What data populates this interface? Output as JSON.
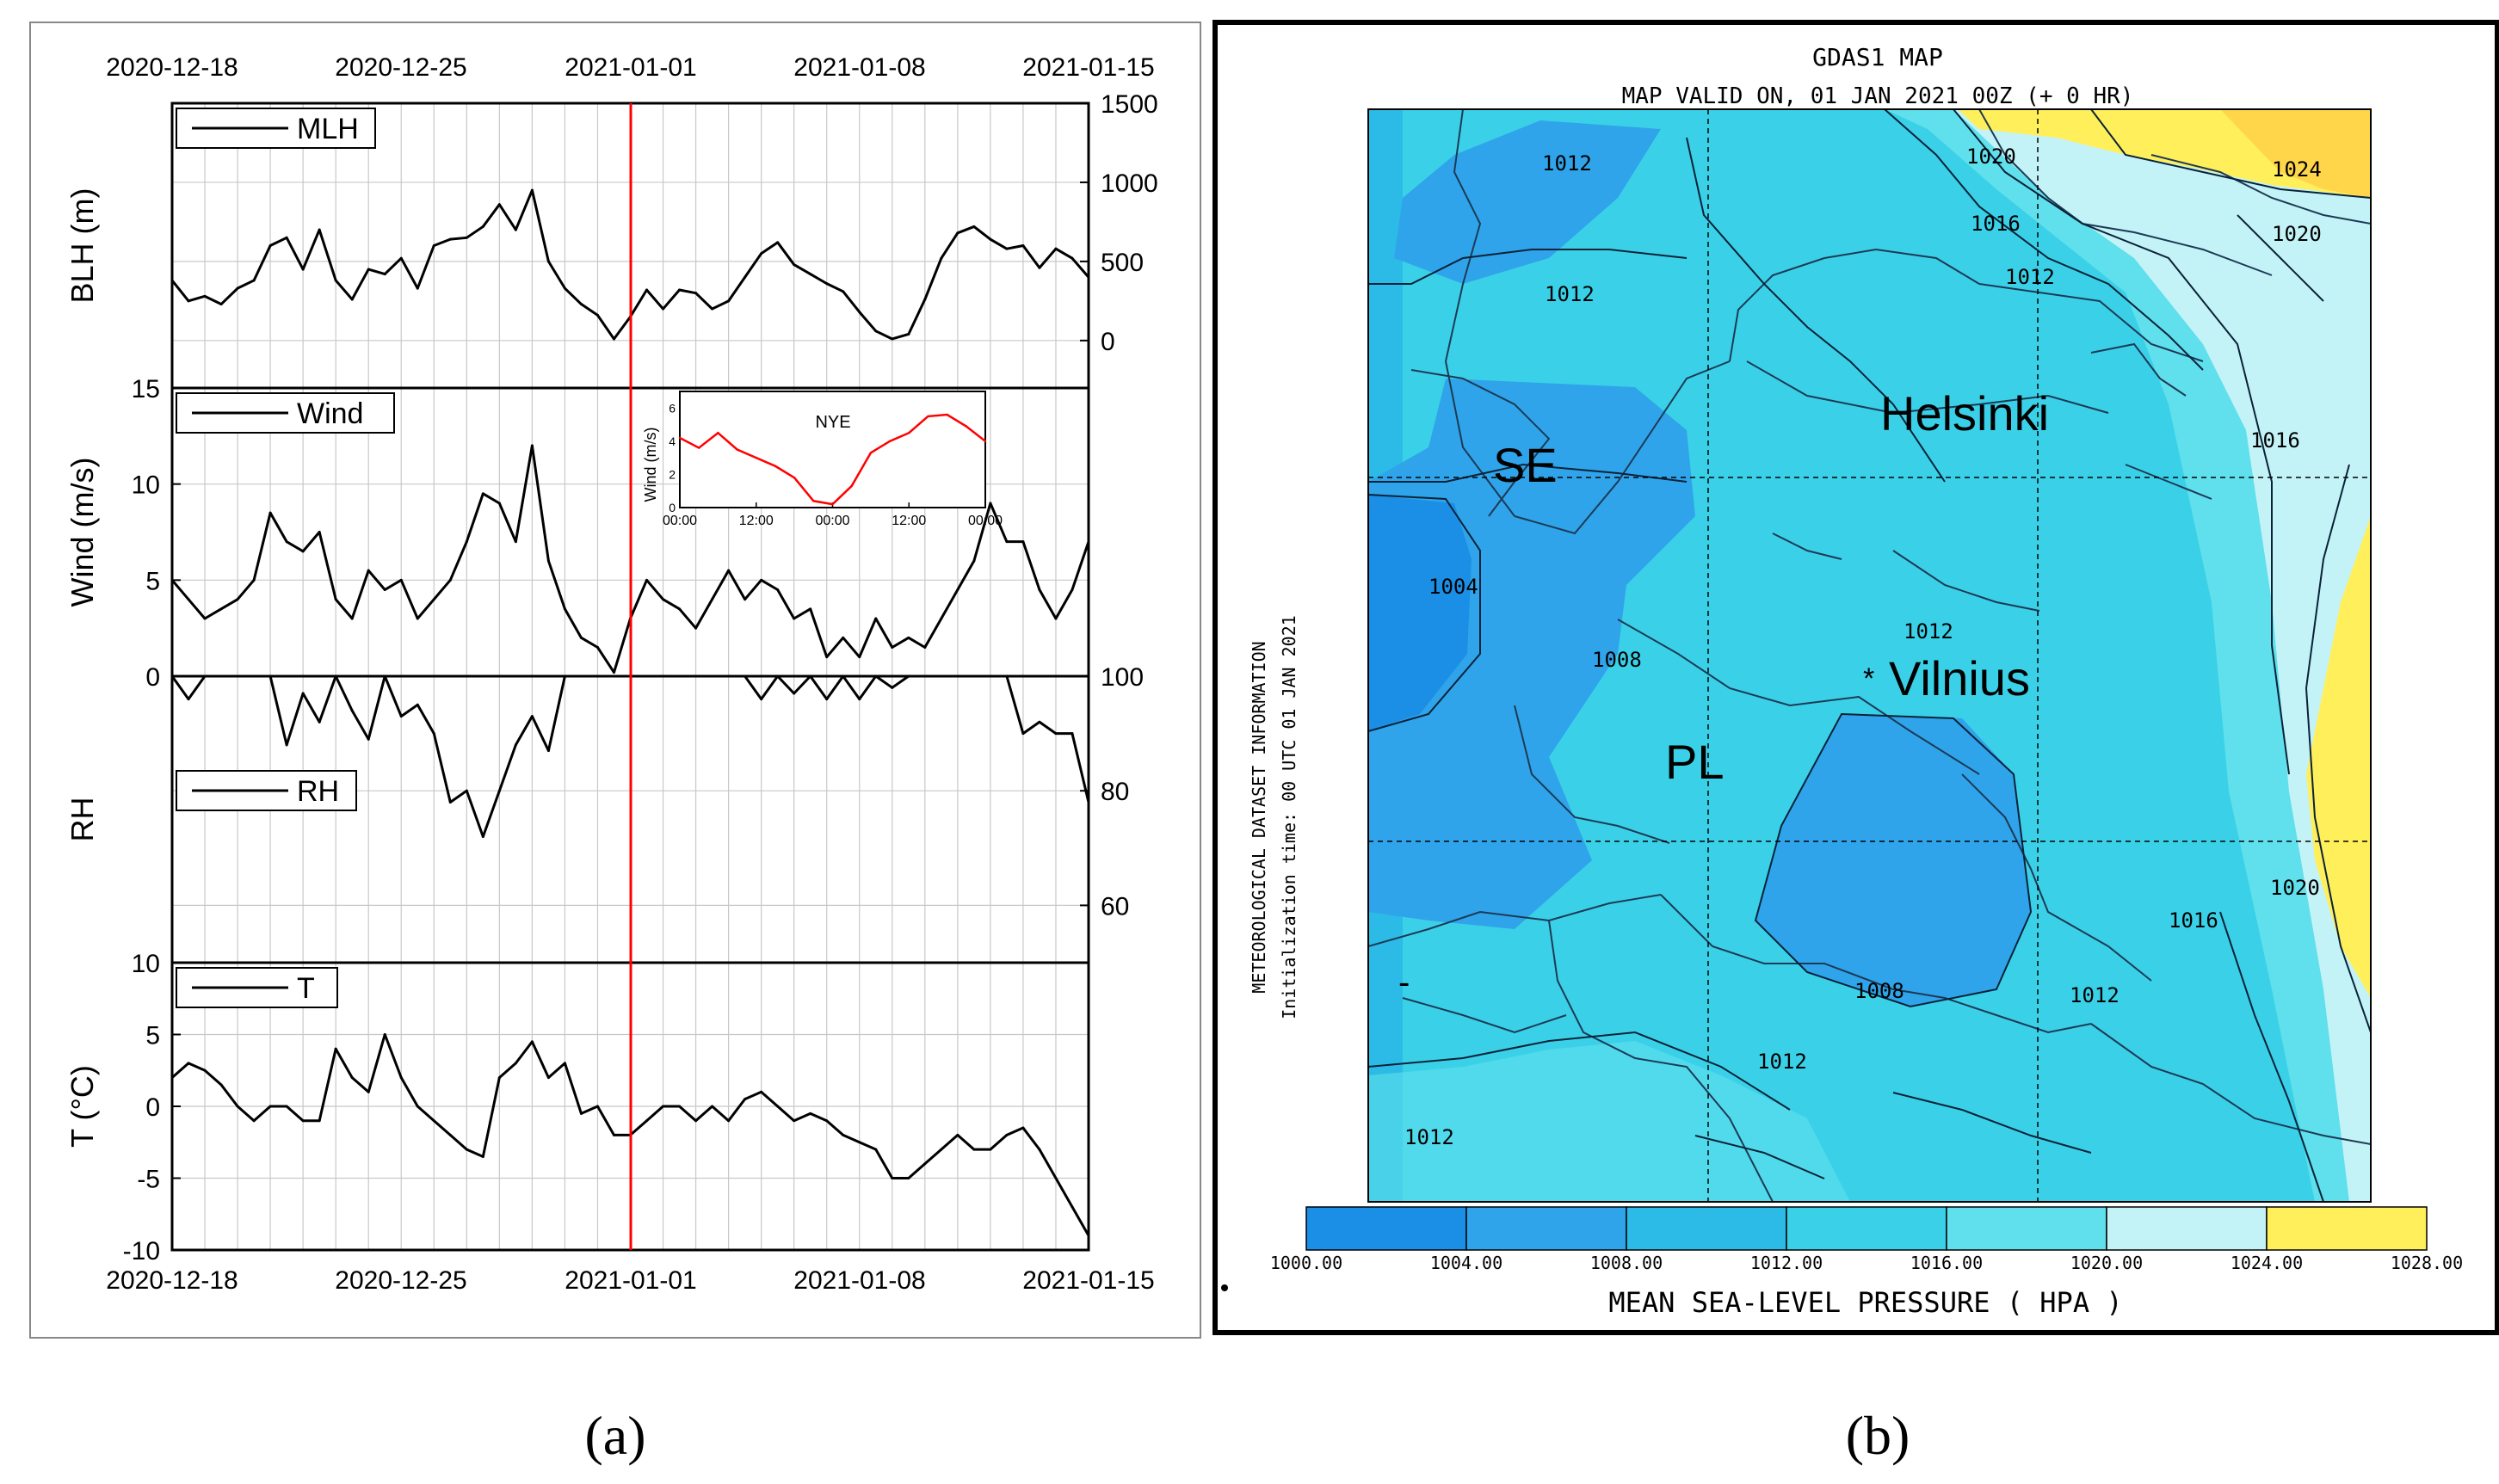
{
  "panel_a": {
    "caption": "(a)",
    "top_dates": [
      "2020-12-18",
      "2020-12-25",
      "2021-01-01",
      "2021-01-08",
      "2021-01-15"
    ],
    "bottom_dates": [
      "2020-12-18",
      "2020-12-25",
      "2021-01-01",
      "2021-01-08",
      "2021-01-15"
    ],
    "event_color": "#ff0000",
    "line_color": "#000000"
  },
  "panel_b": {
    "caption": "(b)",
    "title": "GDAS1 MAP",
    "subtitle": "MAP VALID ON, 01 JAN 2021 00Z (+  0 HR)",
    "side_label_1": "METEOROLOGICAL DATASET INFORMATION",
    "side_label_2": "Initialization time: 00 UTC 01 JAN 2021",
    "colorbar_title": "MEAN SEA-LEVEL PRESSURE ( HPA   )",
    "colorbar_ticks": [
      "1000.00",
      "1004.00",
      "1008.00",
      "1012.00",
      "1016.00",
      "1020.00",
      "1024.00",
      "1028.00"
    ],
    "colorbar_colors": [
      "#1b8fe6",
      "#2fa4ea",
      "#2bbbe6",
      "#3ad1e8",
      "#5fe0ec",
      "#c4f3f7",
      "#ffef5a",
      "#ffc928"
    ],
    "place_labels": [
      "SE",
      "Helsinki",
      "PL",
      "Vilnius"
    ],
    "vilnius_marker": "*",
    "stray_mark": "-",
    "isobar_labels": [
      "1012",
      "1020",
      "1024",
      "1016",
      "1020",
      "1012",
      "1012",
      "1016",
      "1004",
      "1012",
      "1008",
      "1020",
      "1016",
      "1008",
      "1012",
      "1012",
      "1012"
    ]
  },
  "chart_data": [
    {
      "type": "line",
      "title": "",
      "xlabel": "",
      "ylabel": "BLH (m)",
      "legend": "MLH",
      "legend_position": "top-left",
      "ylim": [
        -300,
        1500
      ],
      "yticks": [
        "1500",
        "1000",
        "500",
        "0"
      ],
      "x_start": "2020-12-18",
      "x_end": "2021-01-15",
      "x_days": [
        0,
        0.5,
        1,
        1.5,
        2,
        2.5,
        3,
        3.5,
        4,
        4.5,
        5,
        5.5,
        6,
        6.5,
        7,
        7.5,
        8,
        8.5,
        9,
        9.5,
        10,
        10.5,
        11,
        11.5,
        12,
        12.5,
        13,
        13.5,
        14,
        14.5,
        15,
        15.5,
        16,
        16.5,
        17,
        17.5,
        18,
        18.5,
        19,
        19.5,
        20,
        20.5,
        21,
        21.5,
        22,
        22.5,
        23,
        23.5,
        24,
        24.5,
        25,
        25.5,
        26,
        26.5,
        27,
        27.5,
        28
      ],
      "values": [
        380,
        250,
        280,
        230,
        330,
        380,
        600,
        650,
        450,
        700,
        380,
        260,
        450,
        420,
        520,
        330,
        600,
        640,
        650,
        720,
        860,
        700,
        950,
        500,
        330,
        230,
        160,
        10,
        150,
        320,
        200,
        320,
        300,
        200,
        250,
        400,
        550,
        620,
        480,
        420,
        360,
        310,
        180,
        60,
        10,
        40,
        260,
        520,
        680,
        720,
        640,
        580,
        600,
        460,
        580,
        520,
        400
      ],
      "event_date": "2021-01-01"
    },
    {
      "type": "line",
      "title": "",
      "xlabel": "",
      "ylabel": "Wind (m/s)",
      "legend": "Wind",
      "legend_position": "top-left",
      "ylim": [
        0,
        15
      ],
      "yticks": [
        "15",
        "10",
        "5",
        "0"
      ],
      "x_start": "2020-12-18",
      "x_end": "2021-01-15",
      "x_days": [
        0,
        0.5,
        1,
        1.5,
        2,
        2.5,
        3,
        3.5,
        4,
        4.5,
        5,
        5.5,
        6,
        6.5,
        7,
        7.5,
        8,
        8.5,
        9,
        9.5,
        10,
        10.5,
        11,
        11.5,
        12,
        12.5,
        13,
        13.5,
        14,
        14.5,
        15,
        15.5,
        16,
        16.5,
        17,
        17.5,
        18,
        18.5,
        19,
        19.5,
        20,
        20.5,
        21,
        21.5,
        22,
        22.5,
        23,
        23.5,
        24,
        24.5,
        25,
        25.5,
        26,
        26.5,
        27,
        27.5,
        28
      ],
      "values": [
        5,
        4,
        3,
        3.5,
        4,
        5,
        8.5,
        7,
        6.5,
        7.5,
        4,
        3,
        5.5,
        4.5,
        5,
        3,
        4,
        5,
        7,
        9.5,
        9,
        7,
        12,
        6,
        3.5,
        2,
        1.5,
        0.2,
        3,
        5,
        4,
        3.5,
        2.5,
        4,
        5.5,
        4,
        5,
        4.5,
        3,
        3.5,
        1,
        2,
        1,
        3,
        1.5,
        2,
        1.5,
        3,
        4.5,
        6,
        9,
        7,
        7,
        4.5,
        3,
        4.5,
        7
      ],
      "event_date": "2021-01-01"
    },
    {
      "type": "line",
      "title": "",
      "xlabel": "",
      "ylabel": "RH",
      "legend": "RH",
      "legend_position": "left",
      "ylim": [
        50,
        100
      ],
      "yticks": [
        "100",
        "80",
        "60"
      ],
      "x_start": "2020-12-18",
      "x_end": "2021-01-15",
      "x_days": [
        0,
        0.5,
        1,
        1.5,
        2,
        2.5,
        3,
        3.5,
        4,
        4.5,
        5,
        5.5,
        6,
        6.5,
        7,
        7.5,
        8,
        8.5,
        9,
        9.5,
        10,
        10.5,
        11,
        11.5,
        12,
        12.5,
        13,
        13.5,
        14,
        14.5,
        15,
        15.5,
        16,
        16.5,
        17,
        17.5,
        18,
        18.5,
        19,
        19.5,
        20,
        20.5,
        21,
        21.5,
        22,
        22.5,
        23,
        23.5,
        24,
        24.5,
        25,
        25.5,
        26,
        26.5,
        27,
        27.5,
        28
      ],
      "values": [
        100,
        96,
        100,
        100,
        100,
        100,
        100,
        88,
        97,
        92,
        100,
        94,
        89,
        100,
        93,
        95,
        90,
        78,
        80,
        72,
        80,
        88,
        93,
        87,
        100,
        100,
        100,
        100,
        100,
        100,
        100,
        100,
        100,
        100,
        100,
        100,
        96,
        100,
        97,
        100,
        96,
        100,
        96,
        100,
        98,
        100,
        100,
        100,
        100,
        100,
        100,
        100,
        90,
        92,
        90,
        90,
        78
      ],
      "event_date": "2021-01-01"
    },
    {
      "type": "line",
      "title": "",
      "xlabel": "",
      "ylabel": "T (°C)",
      "legend": "T",
      "legend_position": "top-left",
      "ylim": [
        -10,
        10
      ],
      "yticks": [
        "10",
        "5",
        "0",
        "-5",
        "-10"
      ],
      "x_start": "2020-12-18",
      "x_end": "2021-01-15",
      "x_days": [
        0,
        0.5,
        1,
        1.5,
        2,
        2.5,
        3,
        3.5,
        4,
        4.5,
        5,
        5.5,
        6,
        6.5,
        7,
        7.5,
        8,
        8.5,
        9,
        9.5,
        10,
        10.5,
        11,
        11.5,
        12,
        12.5,
        13,
        13.5,
        14,
        14.5,
        15,
        15.5,
        16,
        16.5,
        17,
        17.5,
        18,
        18.5,
        19,
        19.5,
        20,
        20.5,
        21,
        21.5,
        22,
        22.5,
        23,
        23.5,
        24,
        24.5,
        25,
        25.5,
        26,
        26.5,
        27,
        27.5,
        28
      ],
      "values": [
        2,
        3,
        2.5,
        1.5,
        0,
        -1,
        0,
        0,
        -1,
        -1,
        4,
        2,
        1,
        5,
        2,
        0,
        -1,
        -2,
        -3,
        -3.5,
        2,
        3,
        4.5,
        2,
        3,
        -0.5,
        0,
        -2,
        -2,
        -1,
        0,
        0,
        -1,
        0,
        -1,
        0.5,
        1,
        0,
        -1,
        -0.5,
        -1,
        -2,
        -2.5,
        -3,
        -5,
        -5,
        -4,
        -3,
        -2,
        -3,
        -3,
        -2,
        -1.5,
        -3,
        -5,
        -7,
        -9
      ],
      "event_date": "2021-01-01"
    },
    {
      "type": "line",
      "title": "NYE",
      "xlabel": "",
      "ylabel": "Wind (m/s)",
      "line_color": "#ff0000",
      "x_ticks": [
        "00:00",
        "12:00",
        "00:00",
        "12:00",
        "00:00"
      ],
      "y_ticks": [
        "6",
        "4",
        "2",
        "0"
      ],
      "ylim": [
        0,
        7
      ],
      "x_hours": [
        0,
        3,
        6,
        9,
        12,
        15,
        18,
        21,
        24,
        27,
        30,
        33,
        36,
        39,
        42,
        45,
        48
      ],
      "values": [
        4.2,
        3.6,
        4.5,
        3.5,
        3.0,
        2.5,
        1.8,
        0.4,
        0.2,
        1.3,
        3.3,
        4.0,
        4.5,
        5.5,
        5.6,
        4.9,
        4.0
      ]
    }
  ]
}
